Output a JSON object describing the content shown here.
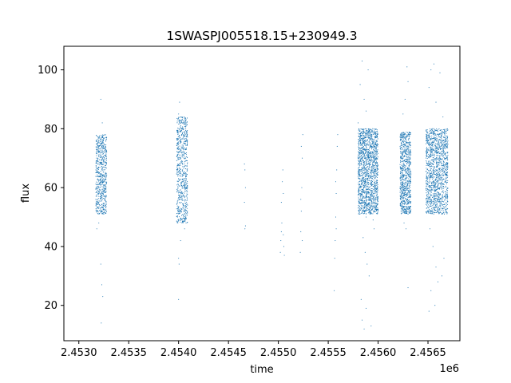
{
  "chart_data": {
    "type": "scatter",
    "title": "1SWASPJ005518.15+230949.3",
    "xlabel": "time",
    "ylabel": "flux",
    "x_offset_label": "1e6",
    "xlim": [
      2452850,
      2456820
    ],
    "ylim": [
      8,
      108
    ],
    "x_ticks": [
      2453000,
      2453500,
      2454000,
      2454500,
      2455000,
      2455500,
      2456000,
      2456500
    ],
    "x_tick_labels": [
      "2.4530",
      "2.4535",
      "2.4540",
      "2.4545",
      "2.4550",
      "2.4555",
      "2.4560",
      "2.4565"
    ],
    "y_ticks": [
      20,
      40,
      60,
      80,
      100
    ],
    "y_tick_labels": [
      "20",
      "40",
      "60",
      "80",
      "100"
    ],
    "grid": false,
    "point_color": "#1f77b4",
    "series": [
      {
        "points": [
          [
            2453180,
            52
          ],
          [
            2453185,
            60
          ],
          [
            2453190,
            70
          ],
          [
            2453195,
            76
          ],
          [
            2453200,
            55
          ],
          [
            2453205,
            65
          ],
          [
            2453210,
            72
          ],
          [
            2453215,
            53
          ],
          [
            2453220,
            58
          ],
          [
            2453225,
            75
          ],
          [
            2453230,
            68
          ],
          [
            2453235,
            62
          ],
          [
            2453240,
            77
          ],
          [
            2453245,
            54
          ],
          [
            2453250,
            66
          ],
          [
            2453255,
            71
          ],
          [
            2453260,
            57
          ],
          [
            2453265,
            74
          ],
          [
            2453270,
            63
          ],
          [
            2453275,
            52
          ],
          [
            2453180,
            46
          ],
          [
            2453200,
            48
          ],
          [
            2453220,
            90
          ],
          [
            2453235,
            82
          ],
          [
            2453220,
            34
          ],
          [
            2453230,
            27
          ],
          [
            2453240,
            23
          ],
          [
            2453225,
            14
          ],
          [
            2453170,
            56
          ],
          [
            2453175,
            73
          ],
          [
            2453990,
            50
          ],
          [
            2453995,
            62
          ],
          [
            2454000,
            75
          ],
          [
            2454005,
            80
          ],
          [
            2454010,
            55
          ],
          [
            2454015,
            68
          ],
          [
            2454020,
            84
          ],
          [
            2454025,
            58
          ],
          [
            2454030,
            72
          ],
          [
            2454035,
            49
          ],
          [
            2454040,
            66
          ],
          [
            2454045,
            78
          ],
          [
            2454050,
            53
          ],
          [
            2454055,
            61
          ],
          [
            2454060,
            83
          ],
          [
            2454065,
            57
          ],
          [
            2454070,
            70
          ],
          [
            2454075,
            48
          ],
          [
            2454080,
            64
          ],
          [
            2454085,
            76
          ],
          [
            2454000,
            85
          ],
          [
            2454010,
            89
          ],
          [
            2454020,
            42
          ],
          [
            2454000,
            36
          ],
          [
            2454005,
            34
          ],
          [
            2454000,
            22
          ],
          [
            2454060,
            46
          ],
          [
            2453985,
            67
          ],
          [
            2454660,
            68
          ],
          [
            2454665,
            66
          ],
          [
            2454670,
            60
          ],
          [
            2454660,
            55
          ],
          [
            2454670,
            47
          ],
          [
            2454665,
            46
          ],
          [
            2455020,
            38
          ],
          [
            2455025,
            42
          ],
          [
            2455030,
            45
          ],
          [
            2455035,
            48
          ],
          [
            2455030,
            55
          ],
          [
            2455040,
            62
          ],
          [
            2455045,
            66
          ],
          [
            2455050,
            44
          ],
          [
            2455055,
            40
          ],
          [
            2455060,
            37
          ],
          [
            2455050,
            58
          ],
          [
            2455220,
            38
          ],
          [
            2455225,
            45
          ],
          [
            2455230,
            52
          ],
          [
            2455235,
            60
          ],
          [
            2455240,
            70
          ],
          [
            2455245,
            78
          ],
          [
            2455230,
            74
          ],
          [
            2455240,
            42
          ],
          [
            2455225,
            56
          ],
          [
            2455565,
            36
          ],
          [
            2455570,
            42
          ],
          [
            2455575,
            50
          ],
          [
            2455580,
            58
          ],
          [
            2455585,
            66
          ],
          [
            2455590,
            74
          ],
          [
            2455595,
            78
          ],
          [
            2455580,
            46
          ],
          [
            2455575,
            62
          ],
          [
            2455560,
            25
          ],
          [
            2455810,
            52
          ],
          [
            2455820,
            60
          ],
          [
            2455830,
            70
          ],
          [
            2455840,
            79
          ],
          [
            2455850,
            55
          ],
          [
            2455860,
            65
          ],
          [
            2455870,
            75
          ],
          [
            2455880,
            50
          ],
          [
            2455890,
            58
          ],
          [
            2455900,
            68
          ],
          [
            2455910,
            77
          ],
          [
            2455920,
            53
          ],
          [
            2455930,
            62
          ],
          [
            2455940,
            72
          ],
          [
            2455950,
            49
          ],
          [
            2455960,
            66
          ],
          [
            2455970,
            74
          ],
          [
            2455980,
            56
          ],
          [
            2455990,
            78
          ],
          [
            2456000,
            52
          ],
          [
            2455820,
            95
          ],
          [
            2455840,
            103
          ],
          [
            2455860,
            90
          ],
          [
            2455880,
            86
          ],
          [
            2455900,
            100
          ],
          [
            2455850,
            43
          ],
          [
            2455870,
            38
          ],
          [
            2455890,
            34
          ],
          [
            2455910,
            30
          ],
          [
            2455830,
            22
          ],
          [
            2455840,
            15
          ],
          [
            2455860,
            12
          ],
          [
            2455880,
            19
          ],
          [
            2455930,
            13
          ],
          [
            2455960,
            46
          ],
          [
            2455800,
            82
          ],
          [
            2456230,
            52
          ],
          [
            2456240,
            60
          ],
          [
            2456250,
            70
          ],
          [
            2456260,
            78
          ],
          [
            2456270,
            55
          ],
          [
            2456280,
            65
          ],
          [
            2456290,
            74
          ],
          [
            2456300,
            51
          ],
          [
            2456310,
            62
          ],
          [
            2456320,
            72
          ],
          [
            2456250,
            85
          ],
          [
            2456270,
            90
          ],
          [
            2456290,
            101
          ],
          [
            2456300,
            96
          ],
          [
            2456260,
            48
          ],
          [
            2456280,
            46
          ],
          [
            2456300,
            26
          ],
          [
            2456500,
            52
          ],
          [
            2456520,
            62
          ],
          [
            2456540,
            72
          ],
          [
            2456560,
            79
          ],
          [
            2456580,
            55
          ],
          [
            2456600,
            66
          ],
          [
            2456620,
            76
          ],
          [
            2456640,
            51
          ],
          [
            2456660,
            60
          ],
          [
            2456680,
            70
          ],
          [
            2456560,
            80
          ],
          [
            2456600,
            52
          ],
          [
            2456640,
            78
          ],
          [
            2456520,
            68
          ],
          [
            2456580,
            58
          ],
          [
            2456620,
            64
          ],
          [
            2456510,
            94
          ],
          [
            2456530,
            100
          ],
          [
            2456560,
            102
          ],
          [
            2456580,
            89
          ],
          [
            2456620,
            99
          ],
          [
            2456650,
            84
          ],
          [
            2456520,
            46
          ],
          [
            2456550,
            40
          ],
          [
            2456580,
            33
          ],
          [
            2456600,
            28
          ],
          [
            2456530,
            25
          ],
          [
            2456510,
            18
          ],
          [
            2456570,
            20
          ],
          [
            2456640,
            30
          ],
          [
            2456660,
            36
          ]
        ]
      }
    ],
    "clusters": [
      {
        "x_range": [
          2453170,
          2453280
        ],
        "y_range": [
          51,
          78
        ],
        "count": 600
      },
      {
        "x_range": [
          2453980,
          2454090
        ],
        "y_range": [
          48,
          84
        ],
        "count": 650
      },
      {
        "x_range": [
          2455800,
          2456000
        ],
        "y_range": [
          51,
          80
        ],
        "count": 1500
      },
      {
        "x_range": [
          2456220,
          2456330
        ],
        "y_range": [
          51,
          79
        ],
        "count": 800
      },
      {
        "x_range": [
          2456480,
          2456700
        ],
        "y_range": [
          51,
          80
        ],
        "count": 1300
      }
    ]
  }
}
